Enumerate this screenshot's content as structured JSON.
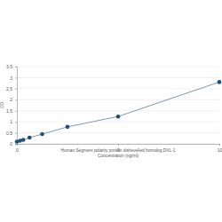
{
  "chart_data": {
    "type": "line",
    "x_label": [
      "Human Segment polarity protein dishevelled homolog DVL-1",
      "Concentration (ng/ml)"
    ],
    "y_label": "OD",
    "x": [
      0,
      0.156,
      0.313,
      0.625,
      1.25,
      2.5,
      5,
      10
    ],
    "values": [
      0.1,
      0.14,
      0.18,
      0.28,
      0.44,
      0.77,
      1.24,
      2.8
    ],
    "color": "#1f4e79",
    "marker": "circle",
    "xlim": [
      0,
      10
    ],
    "xticks": [
      0,
      5,
      10
    ],
    "ylim": [
      0,
      3.5
    ],
    "yticks": [
      0,
      0.5,
      1,
      1.5,
      2,
      2.5,
      3,
      3.5
    ],
    "grid": true
  }
}
